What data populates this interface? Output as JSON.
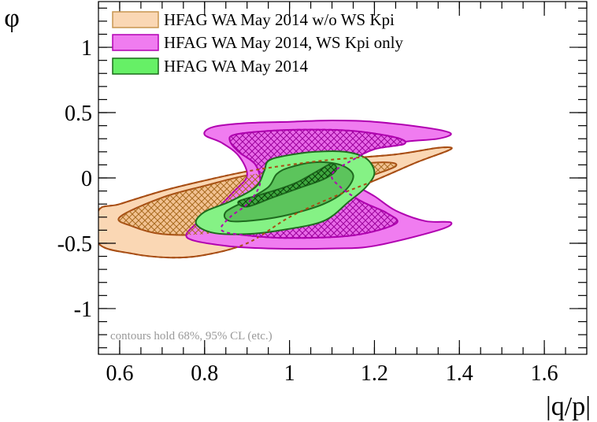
{
  "chart_data": {
    "type": "contour",
    "xlabel": "|q/p|",
    "ylabel": "φ",
    "xlim": [
      0.55,
      1.7
    ],
    "ylim": [
      -1.35,
      1.35
    ],
    "x_ticks": [
      0.6,
      0.8,
      1,
      1.2,
      1.4,
      1.6
    ],
    "x_tick_labels": [
      "0.6",
      "0.8",
      "1",
      "1.2",
      "1.4",
      "1.6"
    ],
    "y_ticks": [
      1,
      0.5,
      0,
      -0.5,
      -1
    ],
    "y_tick_labels": [
      "1",
      "0.5",
      "0",
      "-0.5",
      "-1"
    ],
    "annotation": "contours hold 68%, 95% CL (etc.)",
    "legend_position": "top-left",
    "legend": [
      {
        "label": "HFAG WA May 2014 w/o WS Kpi",
        "color": "#fad7b4",
        "edge": "#c89650"
      },
      {
        "label": "HFAG WA May 2014, WS Kpi only",
        "color": "#f07cf0",
        "edge": "#b300b3"
      },
      {
        "label": "HFAG WA May 2014",
        "color": "#66f066",
        "edge": "#1a6b1a"
      }
    ],
    "series": [
      {
        "name": "HFAG WA May 2014 w/o WS Kpi",
        "color": "#fad7b4",
        "line_color": "#a84e14",
        "contours": [
          {
            "level": "outer",
            "points": [
              [
                0.55,
                -0.25
              ],
              [
                0.6,
                -0.2
              ],
              [
                0.7,
                -0.1
              ],
              [
                0.8,
                -0.02
              ],
              [
                0.9,
                0.05
              ],
              [
                1.0,
                0.1
              ],
              [
                1.1,
                0.14
              ],
              [
                1.25,
                0.18
              ],
              [
                1.35,
                0.23
              ],
              [
                1.38,
                0.22
              ],
              [
                1.3,
                0.12
              ],
              [
                1.2,
                -0.02
              ],
              [
                1.1,
                -0.15
              ],
              [
                1.0,
                -0.3
              ],
              [
                0.9,
                -0.5
              ],
              [
                0.8,
                -0.59
              ],
              [
                0.72,
                -0.61
              ],
              [
                0.63,
                -0.58
              ],
              [
                0.55,
                -0.5
              ]
            ]
          },
          {
            "level": "middle",
            "points": [
              [
                0.6,
                -0.3
              ],
              [
                0.7,
                -0.15
              ],
              [
                0.8,
                -0.06
              ],
              [
                0.9,
                0.02
              ],
              [
                1.0,
                0.06
              ],
              [
                1.1,
                0.09
              ],
              [
                1.22,
                0.12
              ],
              [
                1.25,
                0.09
              ],
              [
                1.18,
                0.0
              ],
              [
                1.1,
                -0.12
              ],
              [
                1.0,
                -0.26
              ],
              [
                0.9,
                -0.38
              ],
              [
                0.8,
                -0.43
              ],
              [
                0.7,
                -0.43
              ],
              [
                0.63,
                -0.37
              ]
            ]
          }
        ]
      },
      {
        "name": "HFAG WA May 2014, WS Kpi only",
        "color": "#f07cf0",
        "line_color": "#b000b0",
        "contours": [
          {
            "level": "outer",
            "points": [
              [
                0.82,
                0.39
              ],
              [
                0.9,
                0.42
              ],
              [
                1.0,
                0.43
              ],
              [
                1.1,
                0.44
              ],
              [
                1.2,
                0.43
              ],
              [
                1.33,
                0.38
              ],
              [
                1.38,
                0.34
              ],
              [
                1.35,
                0.3
              ],
              [
                1.28,
                0.28
              ],
              [
                1.2,
                0.24
              ],
              [
                1.14,
                0.1
              ],
              [
                1.12,
                0.0
              ],
              [
                1.15,
                -0.05
              ],
              [
                1.2,
                -0.14
              ],
              [
                1.25,
                -0.25
              ],
              [
                1.32,
                -0.33
              ],
              [
                1.38,
                -0.34
              ],
              [
                1.35,
                -0.4
              ],
              [
                1.2,
                -0.52
              ],
              [
                1.1,
                -0.54
              ],
              [
                0.95,
                -0.54
              ],
              [
                0.85,
                -0.52
              ],
              [
                0.76,
                -0.46
              ],
              [
                0.78,
                -0.35
              ],
              [
                0.82,
                -0.26
              ],
              [
                0.87,
                -0.1
              ],
              [
                0.9,
                0.02
              ],
              [
                0.88,
                0.17
              ],
              [
                0.84,
                0.27
              ],
              [
                0.8,
                0.33
              ]
            ]
          },
          {
            "level": "middle",
            "points": [
              [
                0.87,
                0.33
              ],
              [
                0.95,
                0.36
              ],
              [
                1.05,
                0.37
              ],
              [
                1.15,
                0.36
              ],
              [
                1.25,
                0.31
              ],
              [
                1.27,
                0.26
              ],
              [
                1.2,
                0.22
              ],
              [
                1.15,
                0.14
              ],
              [
                1.1,
                0.03
              ],
              [
                1.12,
                -0.07
              ],
              [
                1.17,
                -0.18
              ],
              [
                1.23,
                -0.27
              ],
              [
                1.25,
                -0.35
              ],
              [
                1.15,
                -0.44
              ],
              [
                1.0,
                -0.46
              ],
              [
                0.9,
                -0.44
              ],
              [
                0.84,
                -0.4
              ],
              [
                0.86,
                -0.3
              ],
              [
                0.9,
                -0.2
              ],
              [
                0.93,
                -0.05
              ],
              [
                0.92,
                0.1
              ],
              [
                0.88,
                0.2
              ],
              [
                0.86,
                0.28
              ]
            ]
          }
        ]
      },
      {
        "name": "HFAG WA May 2014",
        "color": "#66f066",
        "line_color": "#1f6b1f",
        "contours": [
          {
            "level": "outer",
            "points": [
              [
                0.8,
                -0.26
              ],
              [
                0.86,
                -0.18
              ],
              [
                0.92,
                -0.07
              ],
              [
                0.94,
                0.05
              ],
              [
                0.95,
                0.13
              ],
              [
                0.99,
                0.17
              ],
              [
                1.06,
                0.2
              ],
              [
                1.13,
                0.2
              ],
              [
                1.18,
                0.15
              ],
              [
                1.2,
                0.04
              ],
              [
                1.18,
                -0.07
              ],
              [
                1.14,
                -0.18
              ],
              [
                1.08,
                -0.33
              ],
              [
                0.98,
                -0.4
              ],
              [
                0.9,
                -0.43
              ],
              [
                0.82,
                -0.42
              ],
              [
                0.78,
                -0.35
              ]
            ]
          },
          {
            "level": "middle",
            "points": [
              [
                0.85,
                -0.26
              ],
              [
                0.9,
                -0.17
              ],
              [
                0.95,
                -0.07
              ],
              [
                0.97,
                0.03
              ],
              [
                1.0,
                0.08
              ],
              [
                1.06,
                0.12
              ],
              [
                1.12,
                0.1
              ],
              [
                1.15,
                0.02
              ],
              [
                1.13,
                -0.1
              ],
              [
                1.08,
                -0.2
              ],
              [
                1.0,
                -0.28
              ],
              [
                0.93,
                -0.32
              ],
              [
                0.86,
                -0.33
              ]
            ]
          },
          {
            "level": "core",
            "points": [
              [
                0.88,
                -0.18
              ],
              [
                0.93,
                -0.13
              ],
              [
                0.98,
                -0.08
              ],
              [
                1.02,
                -0.03
              ],
              [
                1.07,
                0.06
              ],
              [
                1.1,
                0.11
              ],
              [
                1.11,
                0.06
              ],
              [
                1.08,
                -0.01
              ],
              [
                1.02,
                -0.08
              ],
              [
                0.96,
                -0.15
              ],
              [
                0.9,
                -0.22
              ]
            ]
          }
        ]
      }
    ]
  }
}
